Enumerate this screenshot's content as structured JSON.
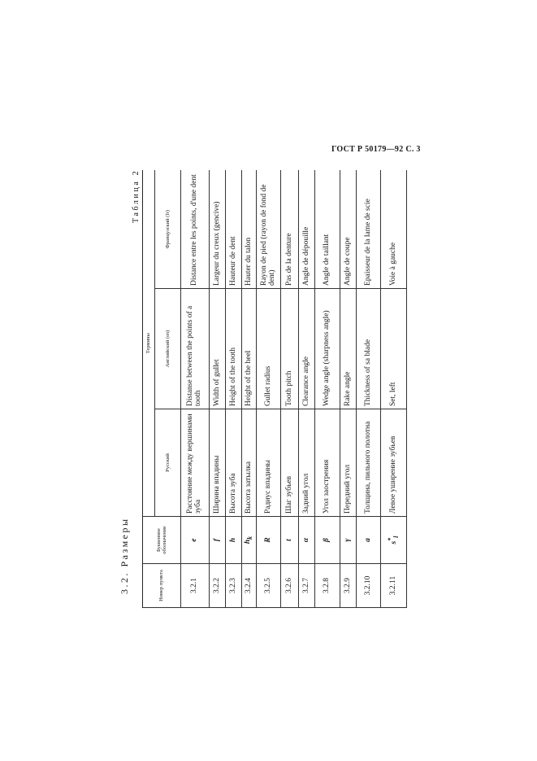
{
  "page_header": "ГОСТ Р 50179—92 С. 3",
  "section_title": "3.2. Размеры",
  "table_label": "Таблица 2",
  "columns": {
    "number": "Номер пункта",
    "symbol": "Буквенное обозначение",
    "terms": "Термины",
    "russian": "Русский",
    "english": "Английский (en)",
    "french": "Французский (fr)"
  },
  "rows": [
    {
      "number": "3.2.1",
      "symbol": "e",
      "symbol_sub": "",
      "symbol_sup": "",
      "russian": "Расстояние между вершинами зуба",
      "english": "Distanse between the points of a tooth",
      "french": "Distance entre les points, d'une dent"
    },
    {
      "number": "3.2.2",
      "symbol": "f",
      "symbol_sub": "",
      "symbol_sup": "",
      "russian": "Ширина впадины",
      "english": "Width of gullet",
      "french": "Largeur du creux (gencive)"
    },
    {
      "number": "3.2.3",
      "symbol": "h",
      "symbol_sub": "",
      "symbol_sup": "",
      "russian": "Высота зуба",
      "english": "Height of the tooth",
      "french": "Hauteur de dent"
    },
    {
      "number": "3.2.4",
      "symbol": "h",
      "symbol_sub": "k",
      "symbol_sup": "",
      "russian": "Высота затылка",
      "english": "Height of the heel",
      "french": "Hauter du talon"
    },
    {
      "number": "3.2.5",
      "symbol": "R",
      "symbol_sub": "",
      "symbol_sup": "",
      "russian": "Радиус впадины",
      "english": "Gullet radius",
      "french": "Rayon de pied (rayon de fond de dent)"
    },
    {
      "number": "3.2.6",
      "symbol": "t",
      "symbol_sub": "",
      "symbol_sup": "",
      "russian": "Шаг зубьев",
      "english": "Tooth pitch",
      "french": "Pas de la denture"
    },
    {
      "number": "3.2.7",
      "symbol": "α",
      "symbol_sub": "",
      "symbol_sup": "",
      "russian": "Задний угол",
      "english": "Clearance angle",
      "french": "Angle de dépouille"
    },
    {
      "number": "3.2.8",
      "symbol": "β",
      "symbol_sub": "",
      "symbol_sup": "",
      "russian": "Угол заострения",
      "english": "Wedge angle (sharpness angle)",
      "french": "Angle de taillant"
    },
    {
      "number": "3.2.9",
      "symbol": "γ",
      "symbol_sub": "",
      "symbol_sup": "",
      "russian": "Передний угол",
      "english": "Rake angle",
      "french": "Angle de coupe"
    },
    {
      "number": "3.2.10",
      "symbol": "a",
      "symbol_sub": "",
      "symbol_sup": "",
      "russian": "Толщина, пильного полотна",
      "english": "Thickness of sa blade",
      "french": "Epaisseur de la lame de scie"
    },
    {
      "number": "3.2.11",
      "symbol": "s",
      "symbol_sub": "l",
      "symbol_sup": "*",
      "russian": "Левое уширение зубьев",
      "english": "Set, left",
      "french": "Voie à gauche"
    }
  ]
}
